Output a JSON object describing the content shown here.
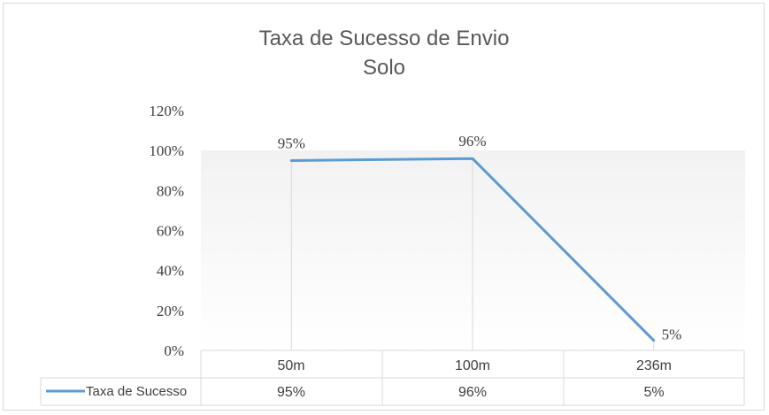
{
  "chart_data": {
    "type": "line",
    "title_lines": [
      "Taxa de Sucesso  de Envio",
      "Solo"
    ],
    "categories": [
      "50m",
      "100m",
      "236m"
    ],
    "series": [
      {
        "name": "Taxa de Sucesso",
        "values": [
          0.95,
          0.96,
          0.05
        ],
        "color": "#5b9bd5"
      }
    ],
    "data_labels": [
      "95%",
      "96%",
      "5%"
    ],
    "table_values": [
      "95%",
      "96%",
      "5%"
    ],
    "y_ticks": [
      "0%",
      "20%",
      "40%",
      "60%",
      "80%",
      "100%",
      "120%"
    ],
    "ylim": [
      0,
      1.2
    ],
    "grid": "vertical category lines",
    "data_table": true,
    "legend": "in data table"
  }
}
